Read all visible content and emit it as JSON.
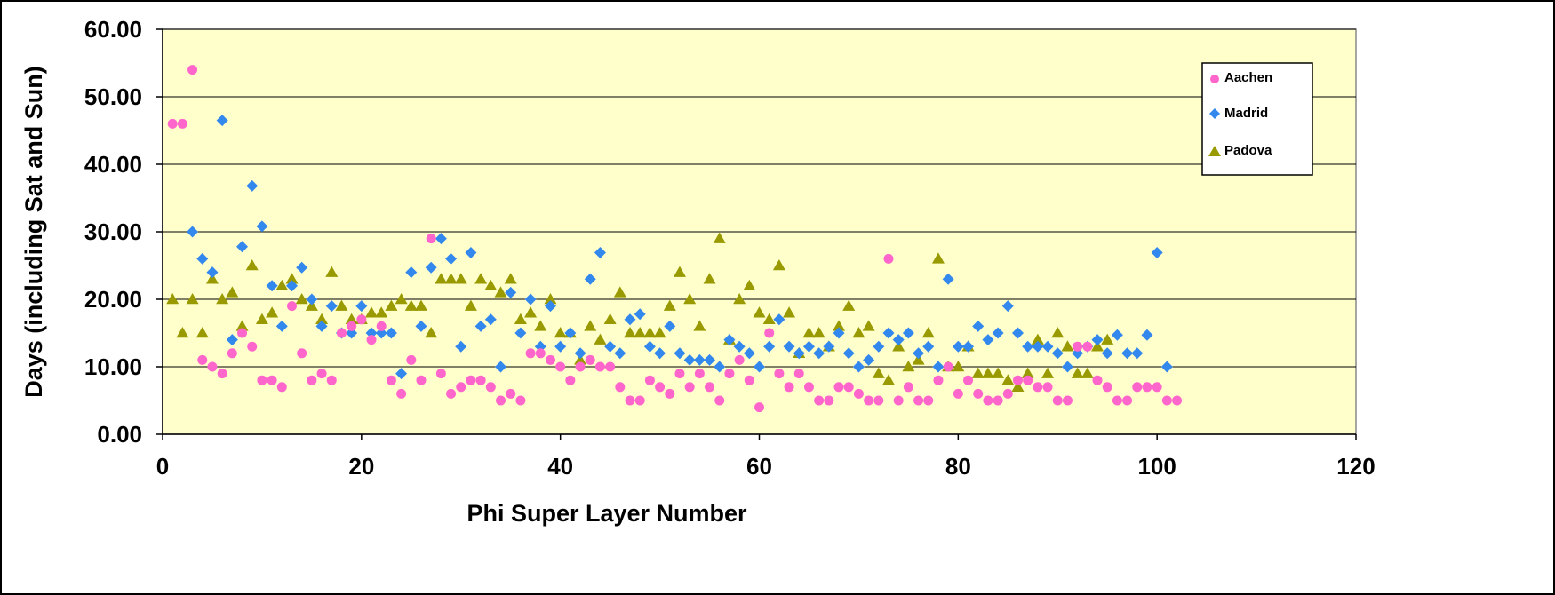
{
  "chart_data": {
    "type": "scatter",
    "title": "",
    "xlabel": "Phi Super Layer Number",
    "ylabel": "Days (including Sat and Sun)",
    "xlim": [
      0,
      120
    ],
    "ylim": [
      0,
      60
    ],
    "x_ticks": [
      "0",
      "20",
      "40",
      "60",
      "80",
      "100",
      "120"
    ],
    "y_ticks": [
      "0.00",
      "10.00",
      "20.00",
      "30.00",
      "40.00",
      "50.00",
      "60.00"
    ],
    "grid": "horizontal",
    "legend_position": "top-right",
    "colors": {
      "plot_bg": "#FFFFCC",
      "grid": "#000000"
    },
    "series": [
      {
        "name": "Aachen",
        "marker": "circle",
        "color": "#FF66CC",
        "x": [
          1,
          2,
          3,
          4,
          5,
          6,
          7,
          8,
          9,
          10,
          11,
          12,
          13,
          14,
          15,
          16,
          17,
          18,
          19,
          20,
          21,
          22,
          23,
          24,
          25,
          26,
          27,
          28,
          29,
          30,
          31,
          32,
          33,
          34,
          35,
          36,
          37,
          38,
          39,
          40,
          41,
          42,
          43,
          44,
          45,
          46,
          47,
          48,
          49,
          50,
          51,
          52,
          53,
          54,
          55,
          56,
          57,
          58,
          59,
          60,
          61,
          62,
          63,
          64,
          65,
          66,
          67,
          68,
          69,
          70,
          71,
          72,
          73,
          74,
          75,
          76,
          77,
          78,
          79,
          80,
          81,
          82,
          83,
          84,
          85,
          86,
          87,
          88,
          89,
          90,
          91,
          92,
          93,
          94,
          95,
          96,
          97,
          98,
          99,
          100,
          101,
          102
        ],
        "y": [
          46,
          46,
          54,
          11,
          10,
          9,
          12,
          15,
          13,
          8,
          8,
          7,
          19,
          12,
          8,
          9,
          8,
          15,
          16,
          17,
          14,
          16,
          8,
          6,
          11,
          8,
          29,
          9,
          6,
          7,
          8,
          8,
          7,
          5,
          6,
          5,
          12,
          12,
          11,
          10,
          8,
          10,
          11,
          10,
          10,
          7,
          5,
          5,
          8,
          7,
          6,
          9,
          7,
          9,
          7,
          5,
          9,
          11,
          8,
          4,
          15,
          9,
          7,
          9,
          7,
          5,
          5,
          7,
          7,
          6,
          5,
          5,
          26,
          5,
          7,
          5,
          5,
          8,
          10,
          6,
          8,
          6,
          5,
          5,
          6,
          8,
          8,
          7,
          7,
          5,
          5,
          13,
          13,
          8,
          7,
          5,
          5,
          7,
          7,
          7,
          5,
          5
        ]
      },
      {
        "name": "Madrid",
        "marker": "diamond",
        "color": "#3388EE",
        "x": [
          3,
          4,
          5,
          6,
          7,
          8,
          9,
          10,
          11,
          12,
          13,
          14,
          15,
          16,
          17,
          18,
          19,
          20,
          21,
          22,
          23,
          24,
          25,
          26,
          27,
          28,
          29,
          30,
          31,
          32,
          33,
          34,
          35,
          36,
          37,
          38,
          39,
          40,
          41,
          42,
          43,
          44,
          45,
          46,
          47,
          48,
          49,
          50,
          51,
          52,
          53,
          54,
          55,
          56,
          57,
          58,
          59,
          60,
          61,
          62,
          63,
          64,
          65,
          66,
          67,
          68,
          69,
          70,
          71,
          72,
          73,
          74,
          75,
          76,
          77,
          78,
          79,
          80,
          81,
          82,
          83,
          84,
          85,
          86,
          87,
          88,
          89,
          90,
          91,
          92,
          93,
          94,
          95,
          96,
          97,
          98,
          99,
          100,
          101
        ],
        "y": [
          30,
          26,
          24,
          46.5,
          14,
          27.8,
          36.8,
          30.8,
          22,
          16,
          22,
          24.7,
          20,
          16,
          19,
          15,
          15,
          19,
          15,
          15,
          15,
          9,
          24,
          16,
          24.7,
          29,
          26,
          13,
          26.9,
          16,
          17,
          10,
          21,
          15,
          20,
          13,
          19,
          13,
          15,
          12,
          23,
          26.9,
          13,
          12,
          17,
          17.8,
          13,
          12,
          16,
          12,
          11,
          11,
          11,
          10,
          14,
          13,
          12,
          10,
          13,
          17,
          13,
          12,
          13,
          12,
          13,
          15,
          12,
          10,
          11,
          13,
          15,
          14,
          15,
          12,
          13,
          10,
          23,
          13,
          13,
          16,
          14,
          15,
          19,
          15,
          13,
          13,
          13,
          12,
          10,
          12,
          13,
          14,
          12,
          14.7,
          12,
          12,
          14.7,
          26.9,
          10
        ]
      },
      {
        "name": "Padova",
        "marker": "triangle",
        "color": "#999900",
        "x": [
          1,
          2,
          3,
          4,
          5,
          6,
          7,
          8,
          9,
          10,
          11,
          12,
          13,
          14,
          15,
          16,
          17,
          18,
          19,
          20,
          21,
          22,
          23,
          24,
          25,
          26,
          27,
          28,
          29,
          30,
          31,
          32,
          33,
          34,
          35,
          36,
          37,
          38,
          39,
          40,
          41,
          42,
          43,
          44,
          45,
          46,
          47,
          48,
          49,
          50,
          51,
          52,
          53,
          54,
          55,
          56,
          57,
          58,
          59,
          60,
          61,
          62,
          63,
          64,
          65,
          66,
          67,
          68,
          69,
          70,
          71,
          72,
          73,
          74,
          75,
          76,
          77,
          78,
          79,
          80,
          81,
          82,
          83,
          84,
          85,
          86,
          87,
          88,
          89,
          90,
          91,
          92,
          93,
          94,
          95
        ],
        "y": [
          20,
          15,
          20,
          15,
          23,
          20,
          21,
          16,
          25,
          17,
          18,
          22,
          23,
          20,
          19,
          17,
          24,
          19,
          17,
          17,
          18,
          18,
          19,
          20,
          19,
          19,
          15,
          23,
          23,
          23,
          19,
          23,
          22,
          21,
          23,
          17,
          18,
          16,
          20,
          15,
          15,
          11,
          16,
          14,
          17,
          21,
          15,
          15,
          15,
          15,
          19,
          24,
          20,
          16,
          23,
          29,
          14,
          20,
          22,
          18,
          17,
          25,
          18,
          12,
          15,
          15,
          13,
          16,
          19,
          15,
          16,
          9,
          8,
          13,
          10,
          11,
          15,
          26,
          10,
          10,
          13,
          9,
          9,
          9,
          8,
          7,
          9,
          14,
          9,
          15,
          13,
          9,
          9,
          13,
          14
        ]
      }
    ]
  }
}
